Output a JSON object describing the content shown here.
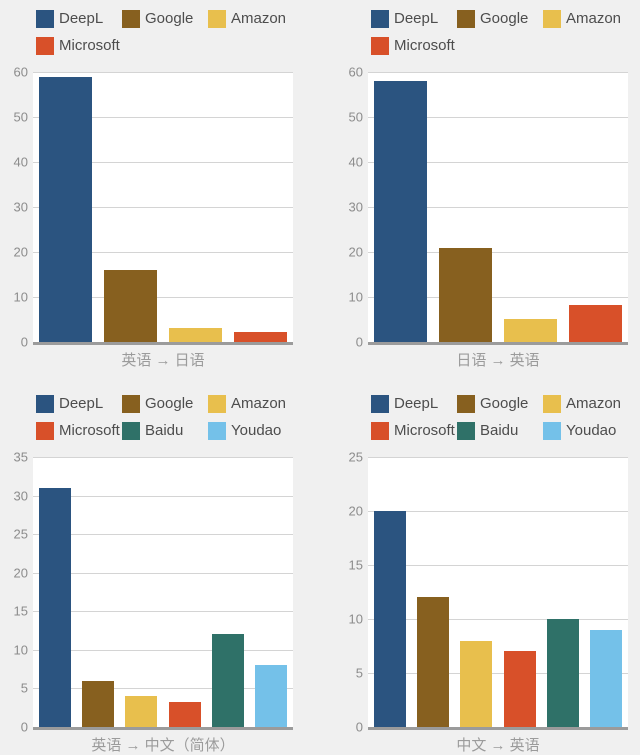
{
  "page": {
    "background_color": "#f0f0f0",
    "plot_background_color": "#ffffff",
    "gridline_color": "#d4d4d4",
    "baseline_color": "#9b9b9b",
    "tick_label_color": "#8c8c8c",
    "legend_text_color": "#4d4d4d",
    "xlabel_color": "#9b9b9b"
  },
  "palette": {
    "DeepL": "#2b5480",
    "Google": "#87601f",
    "Amazon": "#e8bf4d",
    "Microsoft": "#d85029",
    "Baidu": "#2f7168",
    "Youdao": "#74c1e9"
  },
  "chart_data": [
    {
      "type": "bar",
      "title": "",
      "xlabel": "英语 → 日语",
      "ylabel": "",
      "categories": [
        "DeepL",
        "Google",
        "Amazon",
        "Microsoft"
      ],
      "values": [
        59,
        16,
        3.2,
        2.3
      ],
      "colors": [
        "#2b5480",
        "#87601f",
        "#e8bf4d",
        "#d85029"
      ],
      "ylim": [
        0,
        60
      ],
      "yticks": [
        0,
        10,
        20,
        30,
        40,
        50,
        60
      ],
      "grid": true,
      "legend_position": "top"
    },
    {
      "type": "bar",
      "title": "",
      "xlabel": "日语 → 英语",
      "ylabel": "",
      "categories": [
        "DeepL",
        "Google",
        "Amazon",
        "Microsoft"
      ],
      "values": [
        58,
        21,
        5.2,
        8.2
      ],
      "colors": [
        "#2b5480",
        "#87601f",
        "#e8bf4d",
        "#d85029"
      ],
      "ylim": [
        0,
        60
      ],
      "yticks": [
        0,
        10,
        20,
        30,
        40,
        50,
        60
      ],
      "grid": true,
      "legend_position": "top"
    },
    {
      "type": "bar",
      "title": "",
      "xlabel": "英语 → 中文（简体）",
      "ylabel": "",
      "categories": [
        "DeepL",
        "Google",
        "Amazon",
        "Microsoft",
        "Baidu",
        "Youdao"
      ],
      "values": [
        31,
        6,
        4,
        3.2,
        12,
        8
      ],
      "colors": [
        "#2b5480",
        "#87601f",
        "#e8bf4d",
        "#d85029",
        "#2f7168",
        "#74c1e9"
      ],
      "ylim": [
        0,
        35
      ],
      "yticks": [
        0,
        5,
        10,
        15,
        20,
        25,
        30,
        35
      ],
      "grid": true,
      "legend_position": "top"
    },
    {
      "type": "bar",
      "title": "",
      "xlabel": "中文 → 英语",
      "ylabel": "",
      "categories": [
        "DeepL",
        "Google",
        "Amazon",
        "Microsoft",
        "Baidu",
        "Youdao"
      ],
      "values": [
        20,
        12,
        8,
        7,
        10,
        9
      ],
      "colors": [
        "#2b5480",
        "#87601f",
        "#e8bf4d",
        "#d85029",
        "#2f7168",
        "#74c1e9"
      ],
      "ylim": [
        0,
        25
      ],
      "yticks": [
        0,
        5,
        10,
        15,
        20,
        25
      ],
      "grid": true,
      "legend_position": "top"
    }
  ]
}
